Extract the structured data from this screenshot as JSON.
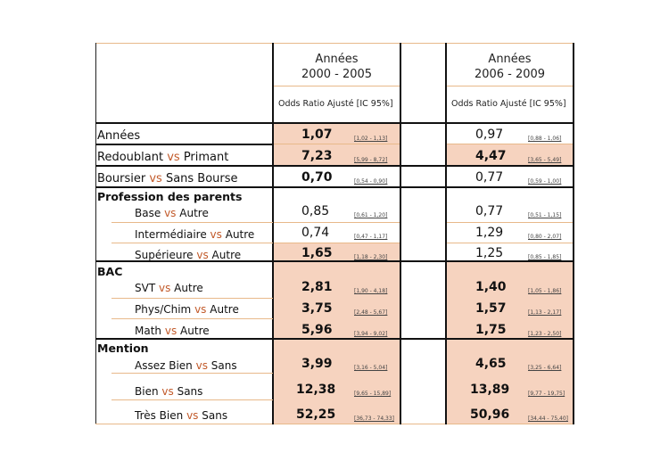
{
  "headers": [
    {
      "line1": "Années",
      "line2": "2000 - 2005",
      "subheader": "Odds Ratio Ajusté   [IC 95%]"
    },
    {
      "line1": "Années",
      "line2": "2006 - 2009",
      "subheader": "Odds Ratio Ajusté  [IC 95%]"
    }
  ],
  "vs_word": "vs",
  "rows": [
    {
      "label": "Années",
      "p1": {
        "or": "1,07",
        "ci": "[1,02 - 1,13]",
        "highlight": true
      },
      "p2": {
        "or": "0,97",
        "ci": "[0,88 - 1,06]",
        "highlight": false
      }
    },
    {
      "label_a": "Redoublant",
      "label_b": "Primant",
      "p1": {
        "or": "7,23",
        "ci": "[5,99 - 8,72]",
        "highlight": true
      },
      "p2": {
        "or": "4,47",
        "ci": "[3,65 - 5,49]",
        "highlight": true
      }
    },
    {
      "label_a": "Boursier",
      "label_b": "Sans Bourse",
      "p1": {
        "or": "0,70",
        "ci": "[0,54 - 0,90]",
        "highlight": false
      },
      "p2": {
        "or": "0,77",
        "ci": "[0,59 - 1,00]",
        "highlight": false
      }
    },
    {
      "section": "Profession des parents"
    },
    {
      "label_a": "Base",
      "label_b": "Autre",
      "p1": {
        "or": "0,85",
        "ci": "[0,61 - 1,20]",
        "highlight": false
      },
      "p2": {
        "or": "0,77",
        "ci": "[0,51 - 1,15]",
        "highlight": false
      }
    },
    {
      "label_a": "Intermédiaire",
      "label_b": "Autre",
      "p1": {
        "or": "0,74",
        "ci": "[0,47 - 1,17]",
        "highlight": false
      },
      "p2": {
        "or": "1,29",
        "ci": "[0,80 - 2,07]",
        "highlight": false
      }
    },
    {
      "label_a": "Supérieure",
      "label_b": "Autre",
      "p1": {
        "or": "1,65",
        "ci": "[1,18 - 2,30]",
        "highlight": true
      },
      "p2": {
        "or": "1,25",
        "ci": "[0,85 - 1,85]",
        "highlight": false
      }
    },
    {
      "section": "BAC"
    },
    {
      "label_a": "SVT",
      "label_b": "Autre",
      "p1": {
        "or": "2,81",
        "ci": "[1,90 - 4,18]",
        "highlight": true
      },
      "p2": {
        "or": "1,40",
        "ci": "[1,05 - 1,86]",
        "highlight": true
      }
    },
    {
      "label_a": "Phys/Chim",
      "label_b": "Autre",
      "p1": {
        "or": "3,75",
        "ci": "[2,48 - 5,67]",
        "highlight": true
      },
      "p2": {
        "or": "1,57",
        "ci": "[1,13 - 2,17]",
        "highlight": true
      }
    },
    {
      "label_a": "Math",
      "label_b": "Autre",
      "p1": {
        "or": "5,96",
        "ci": "[3,94 - 9,02]",
        "highlight": true
      },
      "p2": {
        "or": "1,75",
        "ci": "[1,23 - 2,50]",
        "highlight": true
      }
    },
    {
      "section": "Mention"
    },
    {
      "label_a": "Assez Bien",
      "label_b": "Sans",
      "p1": {
        "or": "3,99",
        "ci": "[3,16 - 5,04]",
        "highlight": true
      },
      "p2": {
        "or": "4,65",
        "ci": "[3,25 - 6,64]",
        "highlight": true
      }
    },
    {
      "label_a": "Bien",
      "label_b": "Sans",
      "p1": {
        "or": "12,38",
        "ci": "[9,65 - 15,89]",
        "highlight": true
      },
      "p2": {
        "or": "13,89",
        "ci": "[9,77 - 19,75]",
        "highlight": true
      }
    },
    {
      "label_a": "Très Bien",
      "label_b": "Sans",
      "p1": {
        "or": "52,25",
        "ci": "[36,73 - 74,33]",
        "highlight": true
      },
      "p2": {
        "or": "50,96",
        "ci": "[34,44 - 75,40]",
        "highlight": true
      }
    }
  ]
}
